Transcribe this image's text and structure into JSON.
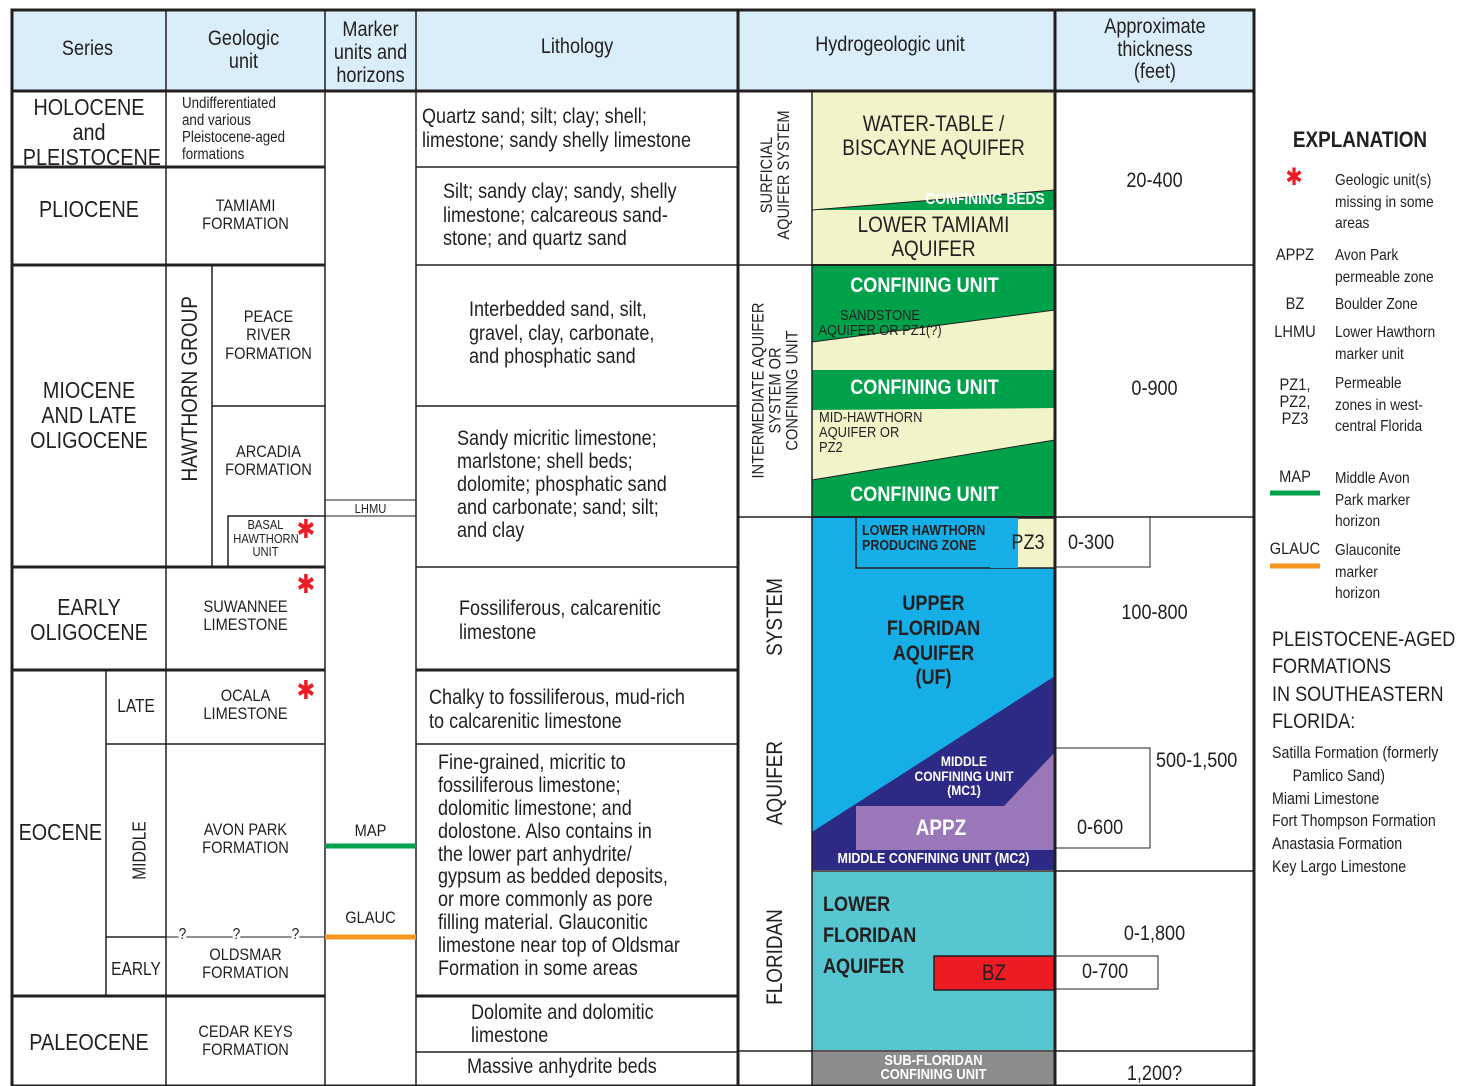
{
  "header": {
    "series": "Series",
    "geologic_unit": [
      "Geologic",
      "unit"
    ],
    "marker": [
      "Marker",
      "units and",
      "horizons"
    ],
    "lithology": "Lithology",
    "hydro": "Hydrogeologic unit",
    "thickness": [
      "Approximate",
      "thickness",
      "(feet)"
    ]
  },
  "series": {
    "holocene": [
      "HOLOCENE",
      "and",
      "PLEISTOCENE"
    ],
    "pliocene": "PLIOCENE",
    "miocene": [
      "MIOCENE",
      "AND LATE",
      "OLIGOCENE"
    ],
    "early_oligocene": [
      "EARLY",
      "OLIGOCENE"
    ],
    "eocene": "EOCENE",
    "late": "LATE",
    "middle": "MIDDLE",
    "early": "EARLY",
    "paleocene": "PALEOCENE"
  },
  "geologic": {
    "undiff": [
      "Undifferentiated",
      "and various",
      "Pleistocene-aged",
      "formations"
    ],
    "tamiami": [
      "TAMIAMI",
      "FORMATION"
    ],
    "hawthorn": "HAWTHORN GROUP",
    "peace": [
      "PEACE",
      "RIVER",
      "FORMATION"
    ],
    "arcadia": [
      "ARCADIA",
      "FORMATION"
    ],
    "basal": [
      "BASAL",
      "HAWTHORN",
      "UNIT"
    ],
    "suwannee": [
      "SUWANNEE",
      "LIMESTONE"
    ],
    "ocala": [
      "OCALA",
      "LIMESTONE"
    ],
    "avon": [
      "AVON PARK",
      "FORMATION"
    ],
    "oldsmar": [
      "OLDSMAR",
      "FORMATION"
    ],
    "cedar": [
      "CEDAR KEYS",
      "FORMATION"
    ],
    "q": "?"
  },
  "markers": {
    "lhmu": "LHMU",
    "map": "MAP",
    "glauc": "GLAUC"
  },
  "lithology": {
    "l1": [
      "Quartz sand; silt; clay; shell;",
      "limestone; sandy shelly limestone"
    ],
    "l2": [
      "Silt; sandy clay; sandy, shelly",
      "limestone; calcareous sand-",
      "stone; and quartz sand"
    ],
    "l3": [
      "Interbedded sand, silt,",
      "gravel, clay, carbonate,",
      "and phosphatic sand"
    ],
    "l4": [
      "Sandy micritic limestone;",
      "marlstone; shell beds;",
      "dolomite; phosphatic sand",
      "and carbonate; sand; silt;",
      "and clay"
    ],
    "l5": [
      "Fossiliferous, calcarenitic",
      "limestone"
    ],
    "l6": [
      "Chalky to fossiliferous, mud-rich",
      "to calcarenitic limestone"
    ],
    "l7": [
      "Fine-grained, micritic to",
      "fossiliferous limestone;",
      "dolomitic limestone; and",
      "dolostone. Also contains in",
      "the lower part anhydrite/",
      "gypsum as bedded deposits,",
      "or more commonly as pore",
      "filling material. Glauconitic",
      "limestone near top of Oldsmar",
      "Formation in some areas"
    ],
    "l8": [
      "Dolomite and dolomitic",
      "limestone"
    ],
    "l9": "Massive anhydrite beds"
  },
  "systems": {
    "surficial": [
      "SURFICIAL",
      "AQUIFER SYSTEM"
    ],
    "intermediate": [
      "INTERMEDIATE AQUIFER",
      "SYSTEM OR",
      "CONFINING UNIT"
    ],
    "floridan": [
      "FLORIDAN",
      "AQUIFER",
      "SYSTEM"
    ]
  },
  "hydro": {
    "water_table": [
      "WATER-TABLE /",
      "BISCAYNE AQUIFER"
    ],
    "confining_beds": "CONFINING BEDS",
    "lower_tamiami": [
      "LOWER TAMIAMI",
      "AQUIFER"
    ],
    "confining_unit": "CONFINING UNIT",
    "sandstone": [
      "SANDSTONE",
      "AQUIFER OR PZ1(?)"
    ],
    "mid_hawthorn": [
      "MID-HAWTHORN",
      "AQUIFER OR",
      "PZ2"
    ],
    "lhpz": [
      "LOWER HAWTHORN",
      "PRODUCING ZONE"
    ],
    "pz3": "PZ3",
    "uf": [
      "UPPER",
      "FLORIDAN",
      "AQUIFER",
      "(UF)"
    ],
    "mc1": [
      "MIDDLE",
      "CONFINING UNIT",
      "(MC1)"
    ],
    "appz": "APPZ",
    "mc2": "MIDDLE CONFINING UNIT (MC2)",
    "lf": [
      "LOWER",
      "FLORIDAN",
      "AQUIFER"
    ],
    "bz": "BZ",
    "sub": [
      "SUB-FLORIDAN",
      "CONFINING UNIT"
    ]
  },
  "thickness": {
    "t1": "20-400",
    "t2": "0-900",
    "t3": "0-300",
    "t4": "100-800",
    "t5": "500-1,500",
    "t6": "0-600",
    "t7": "0-1,800",
    "t8": "0-700",
    "t9": "1,200?"
  },
  "explanation": {
    "title": "EXPLANATION",
    "items": [
      {
        "key": "*",
        "text": [
          "Geologic unit(s)",
          "missing in some",
          "areas"
        ]
      },
      {
        "key": "APPZ",
        "text": [
          "Avon Park",
          "permeable zone"
        ]
      },
      {
        "key": "BZ",
        "text": [
          "Boulder Zone"
        ]
      },
      {
        "key": "LHMU",
        "text": [
          "Lower Hawthorn",
          "marker unit"
        ]
      },
      {
        "key": "PZ1, PZ2, PZ3",
        "text": [
          "Permeable",
          "zones in west-",
          "central Florida"
        ]
      },
      {
        "key": "MAP",
        "text": [
          "Middle Avon",
          "Park marker",
          "horizon"
        ]
      },
      {
        "key": "GLAUC",
        "text": [
          "Glauconite",
          "marker",
          "horizon"
        ]
      }
    ],
    "pleistocene_title": [
      "PLEISTOCENE-AGED",
      "FORMATIONS",
      "IN SOUTHEASTERN",
      "FLORIDA:"
    ],
    "formations": [
      "Satilla Formation (formerly",
      "Pamlico Sand)",
      "Miami Limestone",
      "Fort Thompson Formation",
      "Anastasia Formation",
      "Key Largo Limestone"
    ]
  },
  "colors": {
    "header_bg": "#d9eef8",
    "surficial": "#f1f3c9",
    "confining": "#00a14b",
    "upper_floridan": "#15aee6",
    "mc1": "#2d2a86",
    "appz": "#9a77b8",
    "lower_floridan": "#56c6d1",
    "bz": "#ed1c24",
    "sub": "#8c8c8c",
    "map_line": "#00a14b",
    "glauc_line": "#f7941d",
    "star": "#ed1c24"
  }
}
